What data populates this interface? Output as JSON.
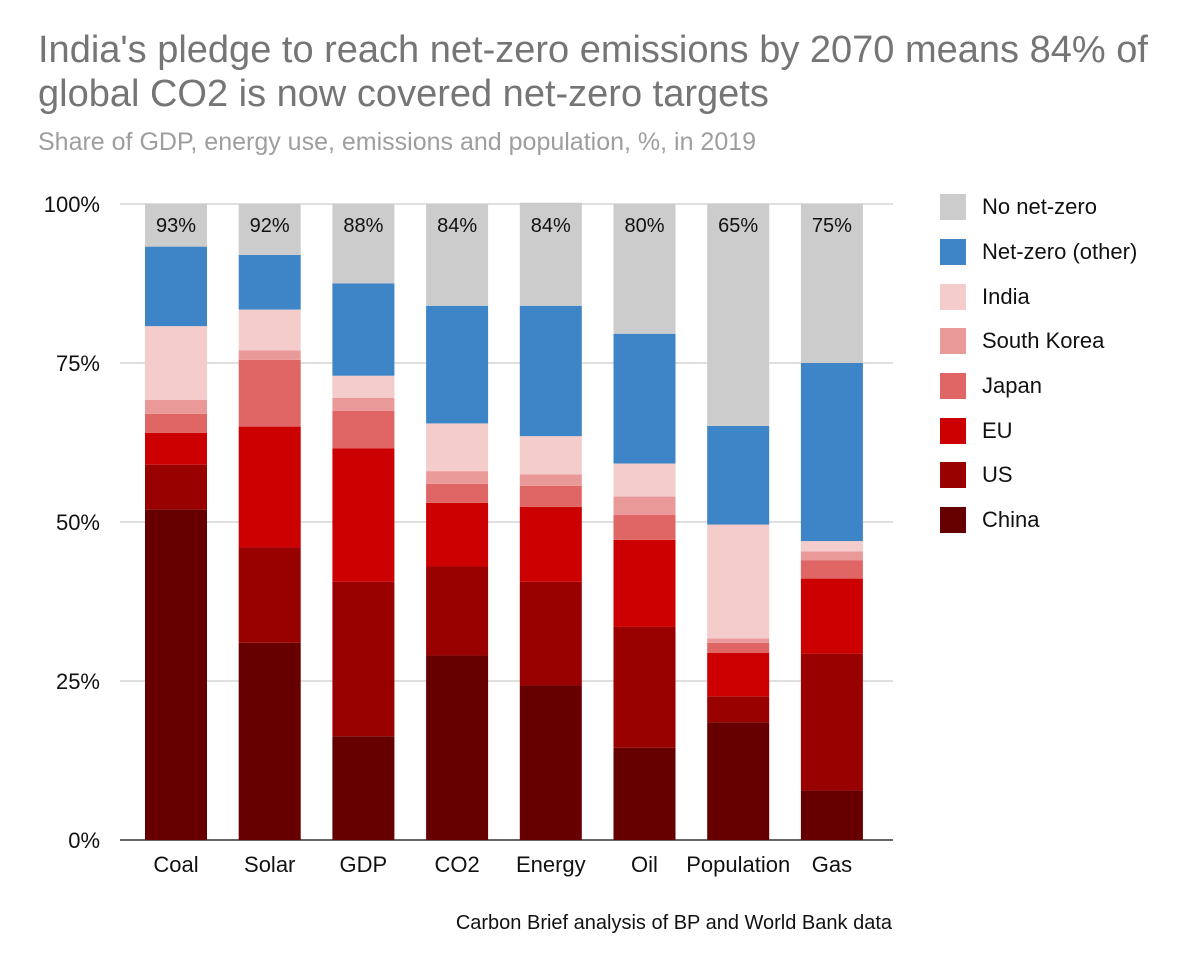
{
  "chart_data": {
    "type": "bar",
    "stacked": true,
    "title": "India's pledge to reach net-zero emissions by 2070 means 84% of global CO2 is now covered net-zero targets",
    "subtitle": "Share of GDP, energy use, emissions and population, %, in 2019",
    "source": "Carbon Brief analysis of BP and World Bank data",
    "categories": [
      "Coal",
      "Solar",
      "GDP",
      "CO2",
      "Energy",
      "Oil",
      "Population",
      "Gas"
    ],
    "ylim": [
      0,
      100
    ],
    "yticks": [
      "0%",
      "25%",
      "50%",
      "75%",
      "100%"
    ],
    "grid": true,
    "legend_position": "right",
    "top_labels": [
      "93%",
      "92%",
      "88%",
      "84%",
      "84%",
      "80%",
      "65%",
      "75%"
    ],
    "series": [
      {
        "name": "China",
        "color": "#660000",
        "values": [
          52,
          31,
          16.3,
          29,
          24.3,
          14.5,
          18.5,
          7.8
        ]
      },
      {
        "name": "US",
        "color": "#990000",
        "values": [
          7,
          15,
          24.3,
          14,
          16.3,
          19,
          4.1,
          21.5
        ]
      },
      {
        "name": "EU",
        "color": "#cc0000",
        "values": [
          5,
          19,
          21,
          10,
          11.8,
          13.7,
          6.8,
          11.8
        ]
      },
      {
        "name": "Japan",
        "color": "#e06666",
        "values": [
          3,
          10.5,
          5.9,
          3,
          3.3,
          3.9,
          1.6,
          2.9
        ]
      },
      {
        "name": "South Korea",
        "color": "#ea9999",
        "values": [
          2.2,
          1.5,
          2,
          2,
          1.8,
          2.9,
          0.7,
          1.4
        ]
      },
      {
        "name": "India",
        "color": "#f4cccc",
        "values": [
          11.6,
          6.4,
          3.5,
          7.5,
          6,
          5.2,
          17.9,
          1.6
        ]
      },
      {
        "name": "Net-zero (other)",
        "color": "#3d85c6",
        "values": [
          12.5,
          8.6,
          14.5,
          18.5,
          20.5,
          20.4,
          15.5,
          28
        ]
      },
      {
        "name": "No net-zero",
        "color": "#cccccc",
        "values": [
          6.7,
          8,
          12.5,
          16,
          16.2,
          20.4,
          35,
          25
        ]
      }
    ]
  }
}
